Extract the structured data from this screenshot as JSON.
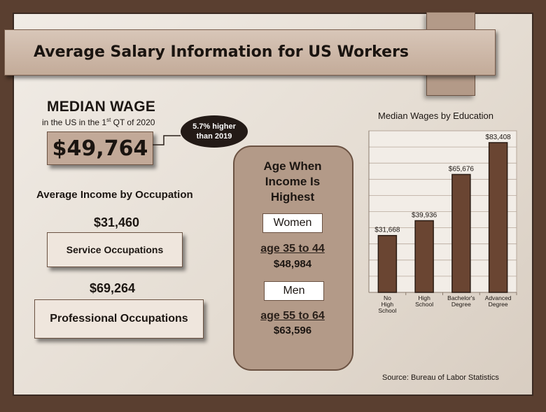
{
  "title": "Average Salary Information for US Workers",
  "median": {
    "heading": "MEDIAN WAGE",
    "subtitle_pre": "in the US in the 1",
    "subtitle_sup": "st",
    "subtitle_post": " QT of 2020",
    "value": "$49,764",
    "bubble_line1": "5.7% higher",
    "bubble_line2": "than 2019"
  },
  "occupation": {
    "heading": "Average Income by Occupation",
    "items": [
      {
        "label": "Service Occupations",
        "value": "$31,460"
      },
      {
        "label": "Professional Occupations",
        "value": "$69,264"
      }
    ]
  },
  "age": {
    "title_lines": [
      "Age When",
      "Income Is",
      "Highest"
    ],
    "women": {
      "label": "Women",
      "range": "age 35 to 44",
      "salary": "$48,984"
    },
    "men": {
      "label": "Men",
      "range": "age 55 to 64",
      "salary": "$63,596"
    }
  },
  "source": "Source: Bureau of Labor Statistics",
  "colors": {
    "bar": "#6a4532",
    "bar_border": "#2b1c14",
    "background": "#5a3f30",
    "accent": "#b39a88"
  },
  "chart_data": {
    "type": "bar",
    "title": "Median Wages by Education",
    "categories": [
      [
        "No",
        "High",
        "School"
      ],
      [
        "High",
        "School"
      ],
      [
        "Bachelor's",
        "Degree"
      ],
      [
        "Advanced",
        "Degree"
      ]
    ],
    "values": [
      31668,
      39936,
      65676,
      83408
    ],
    "value_labels": [
      "$31,668",
      "$39,936",
      "$65,676",
      "$83,408"
    ],
    "ylim": [
      0,
      90000
    ],
    "grid": true,
    "xlabel": "",
    "ylabel": ""
  }
}
